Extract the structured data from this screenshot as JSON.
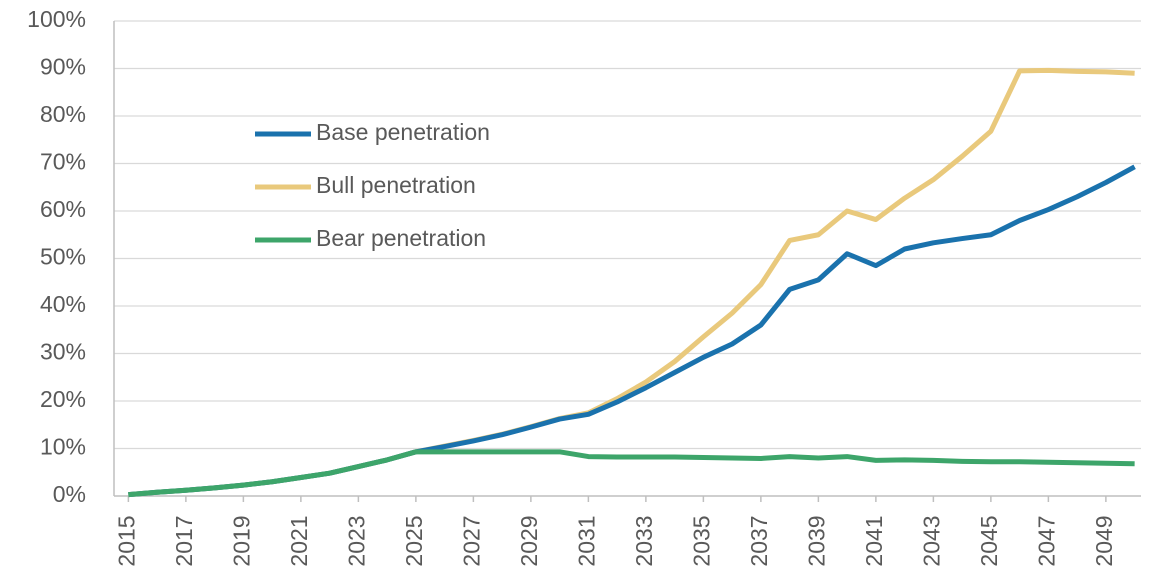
{
  "chart_data": {
    "type": "line",
    "x": [
      2015,
      2016,
      2017,
      2018,
      2019,
      2020,
      2021,
      2022,
      2023,
      2024,
      2025,
      2026,
      2027,
      2028,
      2029,
      2030,
      2031,
      2032,
      2033,
      2034,
      2035,
      2036,
      2037,
      2038,
      2039,
      2040,
      2041,
      2042,
      2043,
      2044,
      2045,
      2046,
      2047,
      2048,
      2049,
      2050
    ],
    "series": [
      {
        "name": "Base penetration",
        "color": "#1a72ad",
        "values": [
          0.3,
          0.8,
          1.2,
          1.7,
          2.3,
          3.0,
          3.9,
          4.8,
          6.2,
          7.6,
          9.3,
          10.4,
          11.6,
          12.9,
          14.5,
          16.2,
          17.2,
          19.8,
          22.8,
          26,
          29.2,
          32,
          36,
          43.5,
          45.5,
          51,
          48.5,
          52,
          53.3,
          54.2,
          55,
          58,
          60.3,
          63,
          66,
          69.3
        ]
      },
      {
        "name": "Bull penetration",
        "color": "#e9c97c",
        "values": [
          0.3,
          0.8,
          1.2,
          1.7,
          2.3,
          3.0,
          3.9,
          4.8,
          6.2,
          7.6,
          9.3,
          10.5,
          11.7,
          13,
          14.6,
          16.3,
          17.5,
          20.5,
          24,
          28.3,
          33.5,
          38.5,
          44.5,
          53.8,
          55,
          60,
          58.2,
          62.7,
          66.6,
          71.5,
          76.8,
          89.5,
          89.6,
          89.4,
          89.3,
          89
        ]
      },
      {
        "name": "Bear penetration",
        "color": "#3da56a",
        "values": [
          0.3,
          0.8,
          1.2,
          1.7,
          2.3,
          3.0,
          3.9,
          4.8,
          6.2,
          7.6,
          9.3,
          9.3,
          9.3,
          9.3,
          9.3,
          9.3,
          8.3,
          8.2,
          8.2,
          8.2,
          8.1,
          8.0,
          7.9,
          8.3,
          8.0,
          8.3,
          7.5,
          7.6,
          7.5,
          7.3,
          7.2,
          7.2,
          7.1,
          7.0,
          6.9,
          6.8
        ]
      }
    ],
    "xlim": [
      2014.5,
      2050.5
    ],
    "xticks": [
      2015,
      2017,
      2019,
      2021,
      2023,
      2025,
      2027,
      2029,
      2031,
      2033,
      2035,
      2037,
      2039,
      2041,
      2043,
      2045,
      2047,
      2049
    ],
    "ylim": [
      0,
      100
    ],
    "yticks": [
      {
        "value": 0,
        "label": "0%"
      },
      {
        "value": 10,
        "label": "10%"
      },
      {
        "value": 20,
        "label": "20%"
      },
      {
        "value": 30,
        "label": "30%"
      },
      {
        "value": 40,
        "label": "40%"
      },
      {
        "value": 50,
        "label": "50%"
      },
      {
        "value": 60,
        "label": "60%"
      },
      {
        "value": 70,
        "label": "70%"
      },
      {
        "value": 80,
        "label": "80%"
      },
      {
        "value": 90,
        "label": "90%"
      },
      {
        "value": 100,
        "label": "100%"
      }
    ],
    "grid": true
  }
}
